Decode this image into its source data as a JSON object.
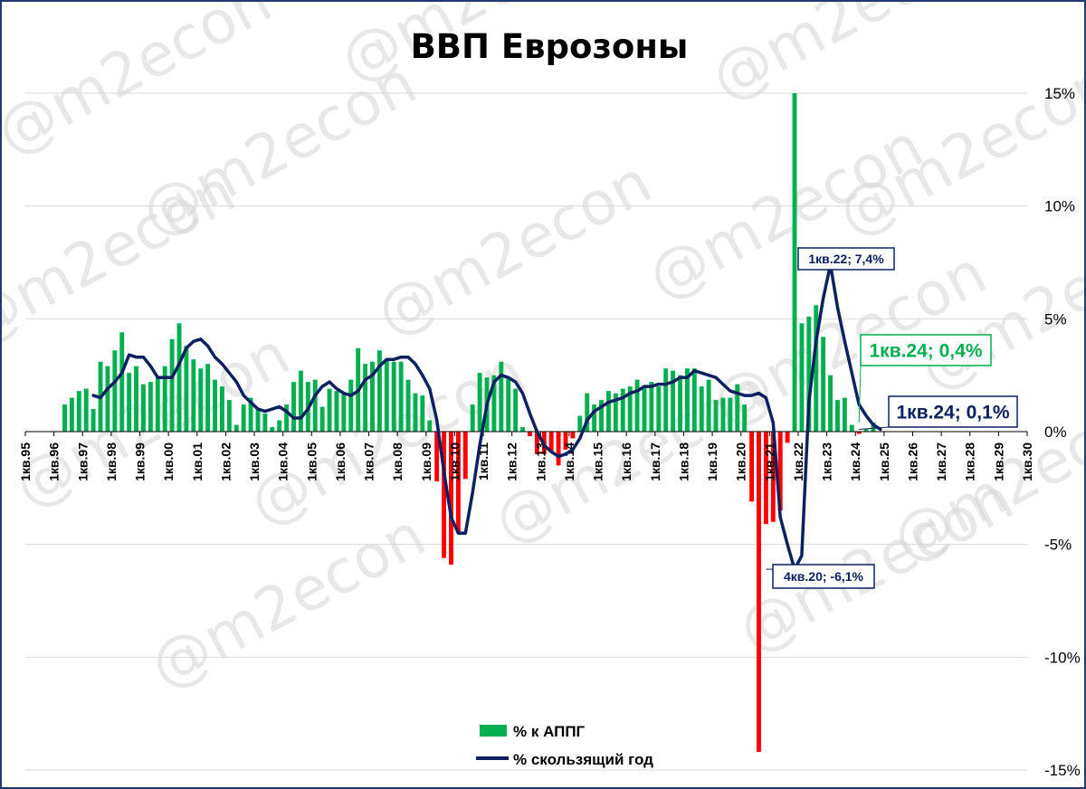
{
  "chart_data": {
    "type": "bar+line",
    "title": "ВВП Еврозоны",
    "y_axis": {
      "range": [
        -15,
        15
      ],
      "ticks": [
        15,
        10,
        5,
        0,
        -5,
        -10,
        -15
      ],
      "tick_labels": [
        "15%",
        "10%",
        "5%",
        "0%",
        "-5%",
        "-10%",
        "-15%"
      ],
      "position": "right",
      "grid": true
    },
    "x_axis": {
      "tick_labels": [
        "1кв.95",
        "1кв.96",
        "1кв.97",
        "1кв.98",
        "1кв.99",
        "1кв.00",
        "1кв.01",
        "1кв.02",
        "1кв.03",
        "1кв.04",
        "1кв.05",
        "1кв.06",
        "1кв.07",
        "1кв.08",
        "1кв.09",
        "1кв.10",
        "1кв.11",
        "1кв.12",
        "1кв.13",
        "1кв.14",
        "1кв.15",
        "1кв.16",
        "1кв.17",
        "1кв.18",
        "1кв.19",
        "1кв.20",
        "1кв.21",
        "1кв.22",
        "1кв.23",
        "1кв.24",
        "1кв.25",
        "1кв.26",
        "1кв.27",
        "1кв.28",
        "1кв.29",
        "1кв.30"
      ],
      "label_orientation": "vertical"
    },
    "legend": {
      "placement": "bottom-center",
      "entries": [
        {
          "name": "% к АППГ",
          "color": "#00b050",
          "kind": "bar"
        },
        {
          "name": "% скользящий год",
          "color": "#0d2060",
          "kind": "line"
        }
      ]
    },
    "series": [
      {
        "name": "% к АППГ",
        "type": "bar",
        "start_quarter": 5,
        "positive_color": "#00b050",
        "negative_color": "#ff0000",
        "values": [
          1.2,
          1.5,
          1.8,
          1.9,
          1.0,
          3.1,
          2.9,
          3.6,
          4.4,
          2.6,
          2.9,
          2.1,
          2.2,
          2.4,
          2.9,
          4.1,
          4.8,
          3.8,
          3.2,
          2.8,
          3.0,
          2.3,
          2.0,
          1.4,
          0.3,
          1.2,
          1.5,
          1.0,
          0.8,
          0.2,
          0.5,
          1.2,
          2.2,
          2.7,
          2.2,
          2.3,
          1.1,
          1.9,
          1.8,
          1.7,
          2.3,
          3.7,
          3.0,
          3.1,
          3.6,
          3.2,
          3.1,
          3.1,
          2.3,
          1.7,
          1.6,
          0.5,
          -2.2,
          -5.6,
          -5.9,
          -4.5,
          -2.1,
          1.2,
          2.6,
          2.4,
          2.5,
          3.1,
          2.4,
          1.9,
          0.2,
          -0.2,
          -1.0,
          -1.0,
          -0.9,
          -1.5,
          -0.8,
          -0.3,
          0.7,
          1.7,
          1.2,
          1.4,
          1.8,
          1.7,
          1.9,
          2.0,
          2.3,
          2.0,
          2.2,
          2.0,
          2.8,
          2.7,
          2.5,
          2.8,
          2.8,
          2.0,
          2.3,
          1.4,
          1.5,
          1.5,
          2.1,
          1.2,
          -3.1,
          -14.2,
          -4.1,
          -4.0,
          -3.5,
          -0.5,
          15.0,
          4.8,
          5.1,
          5.6,
          4.2,
          2.5,
          1.4,
          1.5,
          0.3,
          -0.1,
          0.1,
          0.4
        ],
        "data_labels": [
          {
            "quarter_label": "1кв.24",
            "value": 0.4,
            "text": "1кв.24; 0,4%",
            "color": "#00b050"
          }
        ]
      },
      {
        "name": "% скользящий год",
        "type": "line",
        "start_quarter": 9,
        "color": "#0d2060",
        "values": [
          1.6,
          1.5,
          1.9,
          2.2,
          2.6,
          3.4,
          3.3,
          3.3,
          2.9,
          2.4,
          2.4,
          2.4,
          3.0,
          3.7,
          4.0,
          4.1,
          3.8,
          3.3,
          3.0,
          2.6,
          2.2,
          1.6,
          1.3,
          1.0,
          0.9,
          1.0,
          1.1,
          0.9,
          0.6,
          0.6,
          1.0,
          1.6,
          2.0,
          2.2,
          1.9,
          1.7,
          1.6,
          1.8,
          2.3,
          2.5,
          2.9,
          3.2,
          3.2,
          3.3,
          3.3,
          3.0,
          2.5,
          1.9,
          0.5,
          -1.8,
          -3.8,
          -4.5,
          -4.5,
          -2.7,
          -0.6,
          1.2,
          2.2,
          2.5,
          2.4,
          2.2,
          1.7,
          0.8,
          0.0,
          -0.6,
          -0.9,
          -1.1,
          -1.0,
          -0.8,
          -0.3,
          0.5,
          0.9,
          1.1,
          1.3,
          1.4,
          1.5,
          1.7,
          1.8,
          2.0,
          2.0,
          2.1,
          2.1,
          2.2,
          2.4,
          2.4,
          2.7,
          2.6,
          2.5,
          2.4,
          2.1,
          1.8,
          1.7,
          1.6,
          1.6,
          1.7,
          1.5,
          0.4,
          -3.8,
          -5.0,
          -6.1,
          -5.5,
          1.3,
          4.0,
          5.9,
          7.4,
          5.5,
          4.0,
          2.6,
          1.2,
          0.7,
          0.3,
          0.1
        ],
        "data_labels": [
          {
            "quarter_label": "1кв.22",
            "value": 7.4,
            "text": "1кв.22; 7,4%"
          },
          {
            "quarter_label": "4кв.20",
            "value": -6.1,
            "text": "4кв.20; -6,1%"
          },
          {
            "quarter_label": "1кв.24",
            "value": 0.1,
            "text": "1кв.24; 0,1%"
          }
        ]
      }
    ]
  },
  "watermark": "@m2econ",
  "colors": {
    "grid": "#d9d9d9",
    "axis": "#000000",
    "frame": "#1f3a6b",
    "watermark": "#d6d6d6"
  }
}
